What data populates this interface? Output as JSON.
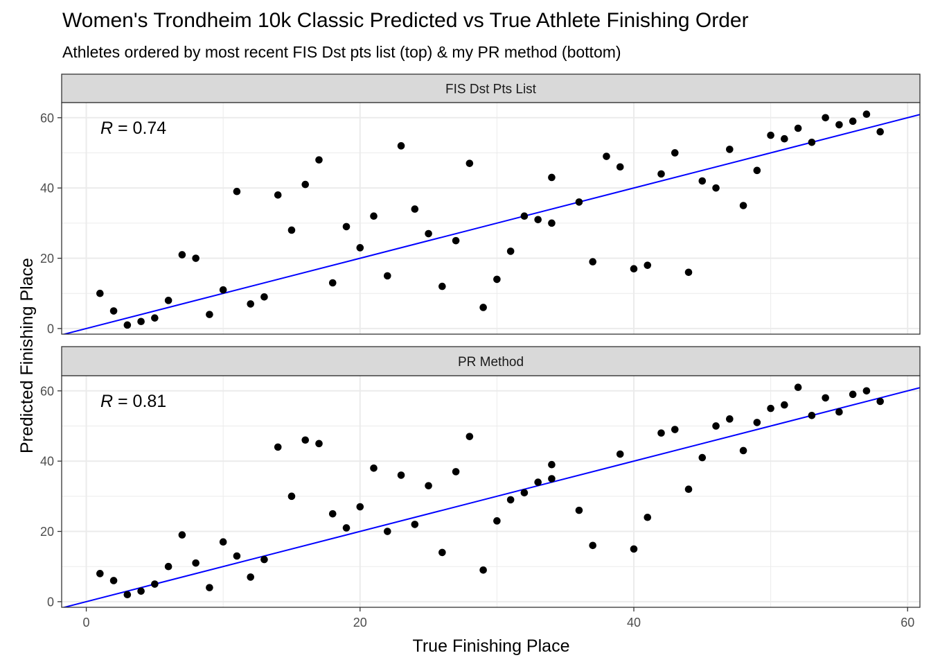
{
  "title": "Women's Trondheim 10k Classic Predicted vs True Athlete Finishing Order",
  "subtitle": "Athletes ordered by most recent FIS Dst pts list (top) & my PR method (bottom)",
  "xlabel": "True Finishing Place",
  "ylabel": "Predicted Finishing Place",
  "colors": {
    "points": "#000000",
    "fit_line": "#0000ff",
    "strip_fill": "#d9d9d9",
    "grid": "#ebebeb"
  },
  "chart_data": [
    {
      "type": "scatter",
      "strip_label": "FIS Dst Pts List",
      "annotation": {
        "symbol": "R",
        "text": " = 0.74"
      },
      "xlim": [
        -1.8,
        60.9
      ],
      "ylim": [
        -1.6,
        64.3
      ],
      "xticks": [
        0,
        20,
        40,
        60
      ],
      "yticks": [
        0,
        20,
        40,
        60
      ],
      "fit_line": {
        "slope": 1,
        "intercept": 0
      },
      "x": [
        1,
        2,
        3,
        4,
        5,
        6,
        7,
        8,
        9,
        10,
        11,
        12,
        13,
        14,
        15,
        16,
        17,
        18,
        19,
        20,
        21,
        22,
        23,
        24,
        25,
        26,
        27,
        28,
        29,
        30,
        31,
        32,
        33,
        34,
        34,
        36,
        37,
        38,
        39,
        40,
        41,
        42,
        43,
        44,
        45,
        46,
        47,
        48,
        49,
        50,
        51,
        52,
        53,
        54,
        55,
        56,
        57,
        58
      ],
      "y": [
        10,
        5,
        1,
        2,
        3,
        8,
        21,
        20,
        4,
        11,
        39,
        7,
        9,
        38,
        28,
        41,
        48,
        13,
        29,
        23,
        32,
        15,
        52,
        34,
        27,
        12,
        25,
        47,
        6,
        14,
        22,
        32,
        31,
        43,
        30,
        36,
        19,
        49,
        46,
        17,
        18,
        44,
        50,
        16,
        42,
        40,
        51,
        35,
        45,
        55,
        54,
        57,
        53,
        60,
        58,
        59,
        61,
        56
      ]
    },
    {
      "type": "scatter",
      "strip_label": "PR Method",
      "annotation": {
        "symbol": "R",
        "text": " = 0.81"
      },
      "xlim": [
        -1.8,
        60.9
      ],
      "ylim": [
        -1.6,
        64.3
      ],
      "xticks": [
        0,
        20,
        40,
        60
      ],
      "yticks": [
        0,
        20,
        40,
        60
      ],
      "fit_line": {
        "slope": 1,
        "intercept": 0
      },
      "x": [
        1,
        2,
        3,
        4,
        5,
        6,
        7,
        8,
        9,
        10,
        11,
        12,
        13,
        14,
        15,
        16,
        17,
        18,
        19,
        20,
        21,
        22,
        23,
        24,
        25,
        26,
        27,
        28,
        29,
        30,
        31,
        32,
        33,
        34,
        34,
        36,
        37,
        39,
        40,
        41,
        42,
        43,
        44,
        45,
        46,
        47,
        48,
        49,
        50,
        51,
        52,
        53,
        54,
        55,
        56,
        57,
        58
      ],
      "y": [
        8,
        6,
        2,
        3,
        5,
        10,
        19,
        11,
        4,
        17,
        13,
        7,
        12,
        44,
        30,
        46,
        45,
        25,
        21,
        27,
        38,
        20,
        36,
        22,
        33,
        14,
        37,
        47,
        9,
        23,
        29,
        31,
        34,
        35,
        39,
        26,
        16,
        42,
        15,
        24,
        48,
        49,
        32,
        41,
        50,
        52,
        43,
        51,
        55,
        56,
        61,
        53,
        58,
        54,
        59,
        60,
        57
      ]
    }
  ]
}
